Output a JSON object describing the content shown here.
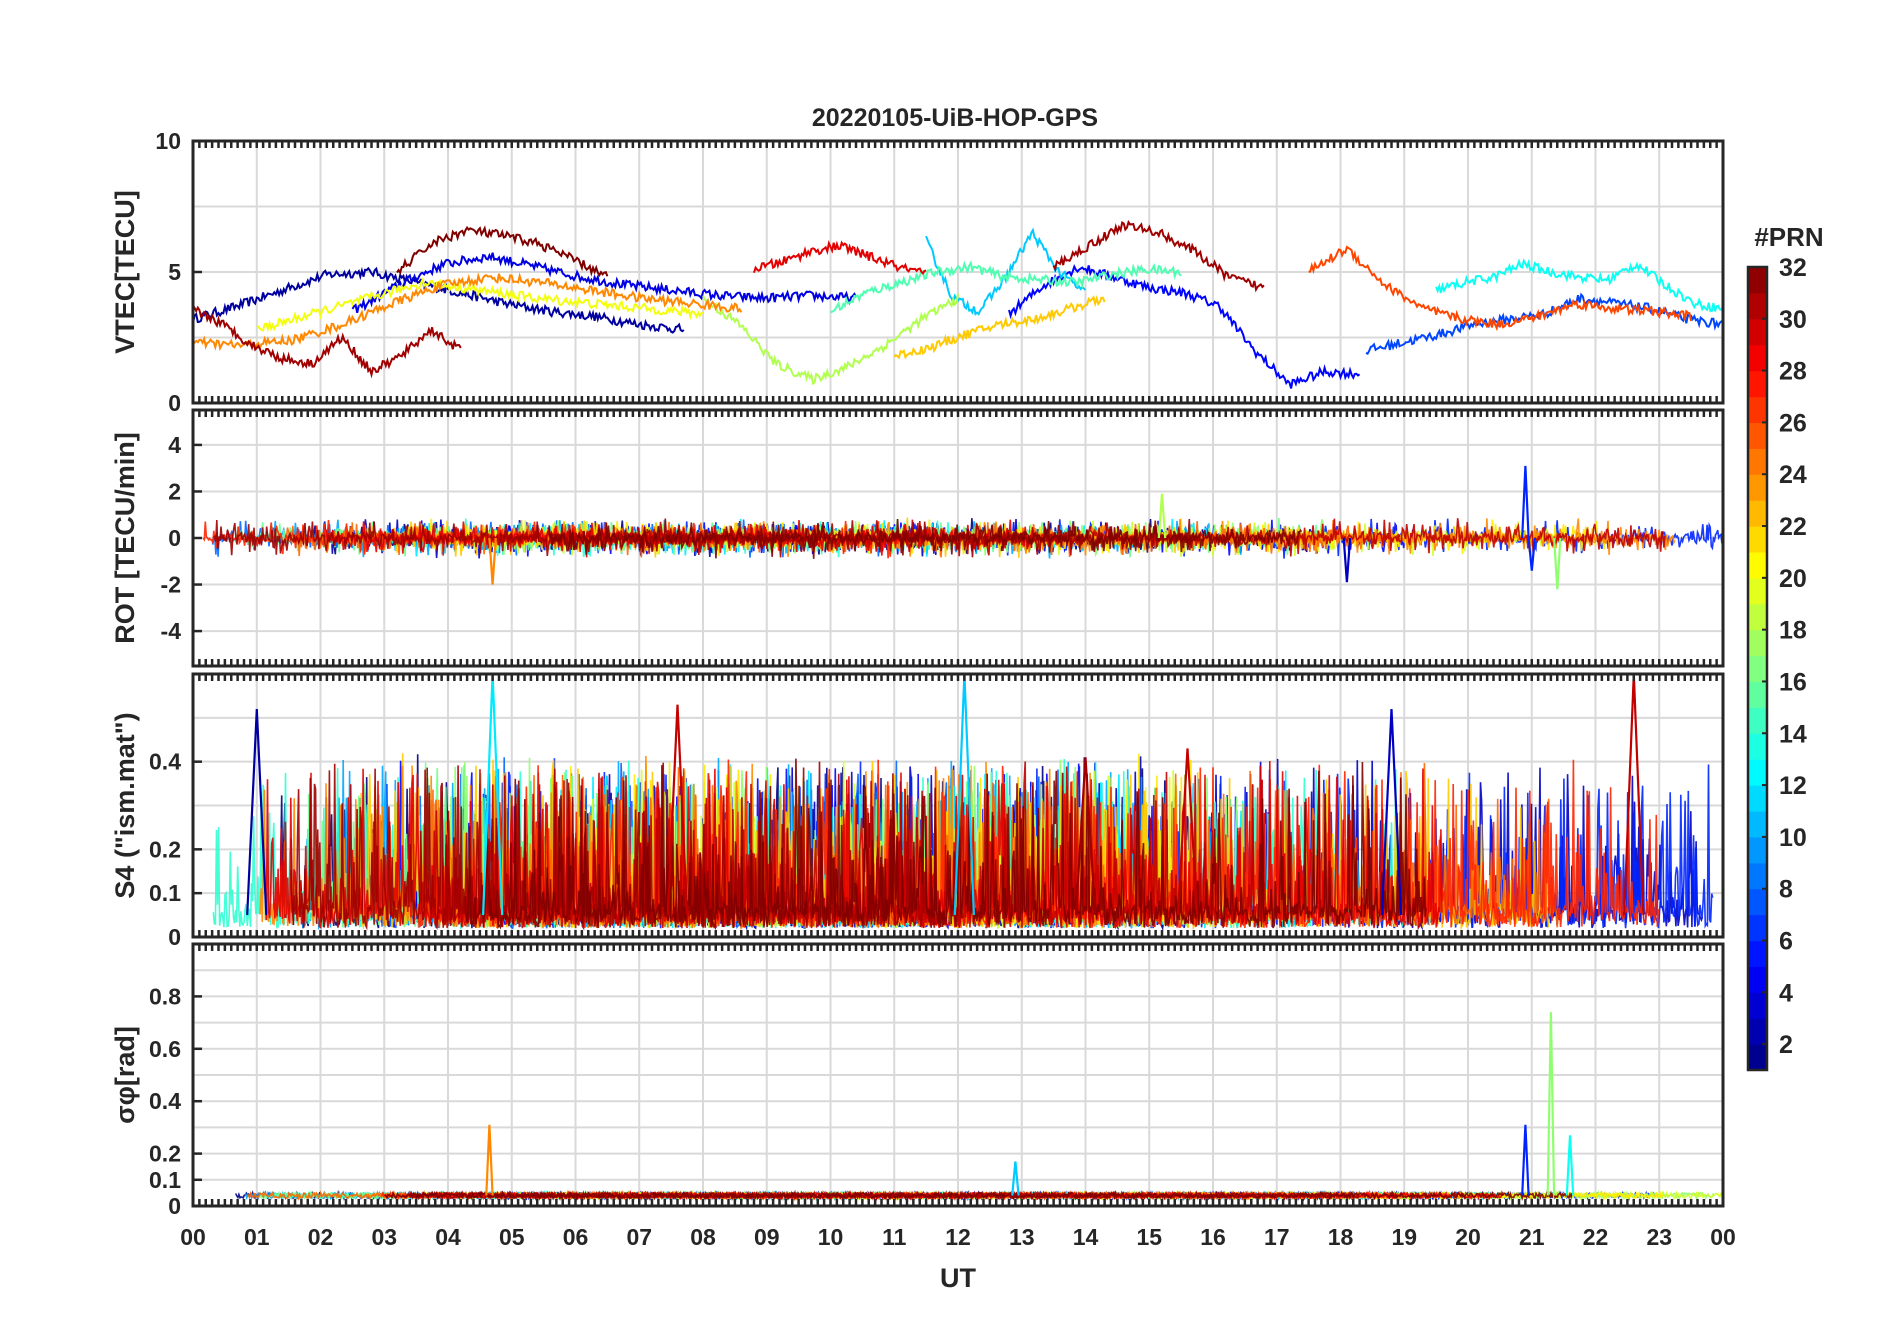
{
  "title": "20220105-UiB-HOP-GPS",
  "chart_data": [
    {
      "type": "line",
      "name": "vtec",
      "ylabel": "VTEC[TECU]",
      "ylim": [
        0,
        10
      ],
      "yticks": [
        0,
        5,
        10
      ],
      "ytick_labels": [
        "0",
        "5",
        "10"
      ],
      "ygrid": [
        0,
        2.5,
        5,
        7.5,
        10
      ],
      "xlim": [
        0,
        24
      ],
      "grid": true,
      "series_hint": {
        "base": 3.8,
        "amp": 0.9,
        "noise": 0.35,
        "floor": 0.3,
        "ceil": 8.5
      },
      "series": [
        {
          "prn": 2,
          "t_start": 0.0,
          "t_end": 7.7,
          "values": [
            3.2,
            3.7,
            4.3,
            4.9,
            5.0,
            4.6,
            4.2,
            3.8,
            3.5,
            3.3,
            3.0,
            2.8
          ]
        },
        {
          "prn": 4,
          "t_start": 2.5,
          "t_end": 10.4,
          "values": [
            3.5,
            4.5,
            5.3,
            5.6,
            5.2,
            4.8,
            4.5,
            4.3,
            4.1,
            4.0,
            4.1,
            4.0
          ]
        },
        {
          "prn": 5,
          "t_start": 12.8,
          "t_end": 18.3,
          "values": [
            3.4,
            4.5,
            5.2,
            4.8,
            4.4,
            4.2,
            3.7,
            2.0,
            0.7,
            1.2,
            1.1
          ]
        },
        {
          "prn": 7,
          "t_start": 18.4,
          "t_end": 24.0,
          "values": [
            2.0,
            2.3,
            2.6,
            3.0,
            3.2,
            3.4,
            4.0,
            3.8,
            3.6,
            3.2,
            3.0
          ]
        },
        {
          "prn": 11,
          "t_start": 11.5,
          "t_end": 14.0,
          "values": [
            6.2,
            4.0,
            3.5,
            4.8,
            6.5,
            5.0,
            4.2
          ]
        },
        {
          "prn": 13,
          "t_start": 19.5,
          "t_end": 24.0,
          "values": [
            4.3,
            4.6,
            4.8,
            5.3,
            5.0,
            4.8,
            4.7,
            5.3,
            4.5,
            3.8,
            3.6
          ]
        },
        {
          "prn": 15,
          "t_start": 10.0,
          "t_end": 15.5,
          "values": [
            3.5,
            4.2,
            4.6,
            5.0,
            5.2,
            4.8,
            4.7,
            4.6,
            4.9,
            5.1,
            5.0
          ]
        },
        {
          "prn": 18,
          "t_start": 8.0,
          "t_end": 12.0,
          "values": [
            4.0,
            3.0,
            1.5,
            0.9,
            1.4,
            2.2,
            3.2,
            4.0
          ]
        },
        {
          "prn": 20,
          "t_start": 1.0,
          "t_end": 8.0,
          "values": [
            2.8,
            3.4,
            4.0,
            4.6,
            4.3,
            4.0,
            3.8,
            3.6,
            3.4
          ]
        },
        {
          "prn": 22,
          "t_start": 11.0,
          "t_end": 14.3,
          "values": [
            1.8,
            2.1,
            2.6,
            3.0,
            3.2,
            3.6,
            4.0
          ]
        },
        {
          "prn": 24,
          "t_start": 0.0,
          "t_end": 8.6,
          "values": [
            2.3,
            2.2,
            2.4,
            3.0,
            3.8,
            4.5,
            4.8,
            4.6,
            4.3,
            4.0,
            3.8,
            3.6
          ]
        },
        {
          "prn": 26,
          "t_start": 17.5,
          "t_end": 23.5,
          "values": [
            5.0,
            5.9,
            4.5,
            3.6,
            3.2,
            3.0,
            3.3,
            3.8,
            3.6,
            3.5,
            3.3
          ]
        },
        {
          "prn": 29,
          "t_start": 8.8,
          "t_end": 11.5,
          "values": [
            5.1,
            5.4,
            5.8,
            6.0,
            5.6,
            5.2,
            4.9
          ]
        },
        {
          "prn": 31,
          "t_start": 0.0,
          "t_end": 4.2,
          "values": [
            3.6,
            3.0,
            2.2,
            1.7,
            1.5,
            2.5,
            1.2,
            1.8,
            2.8,
            2.0
          ]
        },
        {
          "prn": 32,
          "t_start": 3.2,
          "t_end": 6.5,
          "values": [
            5.0,
            6.1,
            6.6,
            6.4,
            6.1,
            5.5,
            4.8
          ]
        },
        {
          "prn": 31,
          "t_start": 13.5,
          "t_end": 16.8,
          "values": [
            5.2,
            6.0,
            6.8,
            6.5,
            5.8,
            4.8,
            4.4
          ]
        }
      ]
    },
    {
      "type": "line",
      "name": "rot",
      "ylabel": "ROT [TECU/min]",
      "ylim": [
        -5.5,
        5.5
      ],
      "yticks": [
        -4,
        -2,
        0,
        2,
        4
      ],
      "ytick_labels": [
        "-4",
        "-2",
        "0",
        "2",
        "4"
      ],
      "ygrid": [
        -4,
        -2,
        0,
        2,
        4
      ],
      "xlim": [
        0,
        24
      ],
      "grid": true,
      "series_hint": {
        "base": 0.0,
        "amp": 0.3,
        "noise": 0.3,
        "floor": -2.2,
        "ceil": 3.1
      },
      "peaks": [
        {
          "prn": 6,
          "t": 20.9,
          "value": 3.1
        },
        {
          "prn": 6,
          "t": 21.0,
          "value": -1.4
        },
        {
          "prn": 17,
          "t": 21.4,
          "value": -2.2
        },
        {
          "prn": 24,
          "t": 4.7,
          "value": -2.0
        },
        {
          "prn": 3,
          "t": 18.1,
          "value": -1.9
        },
        {
          "prn": 18,
          "t": 15.2,
          "value": 1.9
        }
      ]
    },
    {
      "type": "line",
      "name": "s4",
      "ylabel": "S4 (\"ism.mat\")",
      "ylim": [
        0,
        0.6
      ],
      "yticks": [
        0,
        0.1,
        0.2,
        0.4
      ],
      "ytick_labels": [
        "0",
        "0.1",
        "0.2",
        "0.4"
      ],
      "ygrid": [
        0,
        0.1,
        0.2,
        0.3,
        0.4,
        0.5,
        0.6
      ],
      "xlim": [
        0,
        24
      ],
      "grid": true,
      "series_hint": {
        "base": 0.05,
        "amp": 0.1,
        "noise": 0.06,
        "floor": 0.0,
        "ceil": 0.6
      },
      "peaks": [
        {
          "prn": 2,
          "t": 1.0,
          "value": 0.52
        },
        {
          "prn": 12,
          "t": 4.7,
          "value": 0.6
        },
        {
          "prn": 30,
          "t": 7.6,
          "value": 0.53
        },
        {
          "prn": 11,
          "t": 12.1,
          "value": 0.6
        },
        {
          "prn": 31,
          "t": 14.0,
          "value": 0.41
        },
        {
          "prn": 30,
          "t": 15.6,
          "value": 0.43
        },
        {
          "prn": 3,
          "t": 18.8,
          "value": 0.52
        },
        {
          "prn": 30,
          "t": 22.6,
          "value": 0.6
        }
      ]
    },
    {
      "type": "line",
      "name": "sigma_phi",
      "ylabel": "σφ[rad]",
      "ylim": [
        0,
        1.0
      ],
      "yticks": [
        0,
        0.1,
        0.2,
        0.4,
        0.6,
        0.8
      ],
      "ytick_labels": [
        "0",
        "0.1",
        "0.2",
        "0.4",
        "0.6",
        "0.8"
      ],
      "ygrid": [
        0,
        0.1,
        0.2,
        0.3,
        0.4,
        0.5,
        0.6,
        0.7,
        0.8,
        0.9,
        1.0
      ],
      "xlim": [
        0,
        24
      ],
      "grid": true,
      "series_hint": {
        "base": 0.04,
        "amp": 0.01,
        "noise": 0.01,
        "floor": 0.0,
        "ceil": 1.0
      },
      "peaks": [
        {
          "prn": 24,
          "t": 4.65,
          "value": 0.31
        },
        {
          "prn": 6,
          "t": 20.9,
          "value": 0.31
        },
        {
          "prn": 17,
          "t": 21.3,
          "value": 0.74
        },
        {
          "prn": 13,
          "t": 21.6,
          "value": 0.27
        },
        {
          "prn": 11,
          "t": 12.9,
          "value": 0.17
        }
      ]
    }
  ],
  "xaxis": {
    "label": "UT",
    "ticks": [
      0,
      1,
      2,
      3,
      4,
      5,
      6,
      7,
      8,
      9,
      10,
      11,
      12,
      13,
      14,
      15,
      16,
      17,
      18,
      19,
      20,
      21,
      22,
      23,
      24
    ],
    "tick_labels": [
      "00",
      "01",
      "02",
      "03",
      "04",
      "05",
      "06",
      "07",
      "08",
      "09",
      "10",
      "11",
      "12",
      "13",
      "14",
      "15",
      "16",
      "17",
      "18",
      "19",
      "20",
      "21",
      "22",
      "23",
      "00"
    ]
  },
  "colorbar": {
    "label": "#PRN",
    "min": 1,
    "max": 32,
    "ticks": [
      2,
      4,
      6,
      8,
      10,
      12,
      14,
      16,
      18,
      20,
      22,
      24,
      26,
      28,
      30,
      32
    ],
    "tick_labels": [
      "2",
      "4",
      "6",
      "8",
      "10",
      "12",
      "14",
      "16",
      "18",
      "20",
      "22",
      "24",
      "26",
      "28",
      "30",
      "32"
    ],
    "colormap": "jet"
  }
}
